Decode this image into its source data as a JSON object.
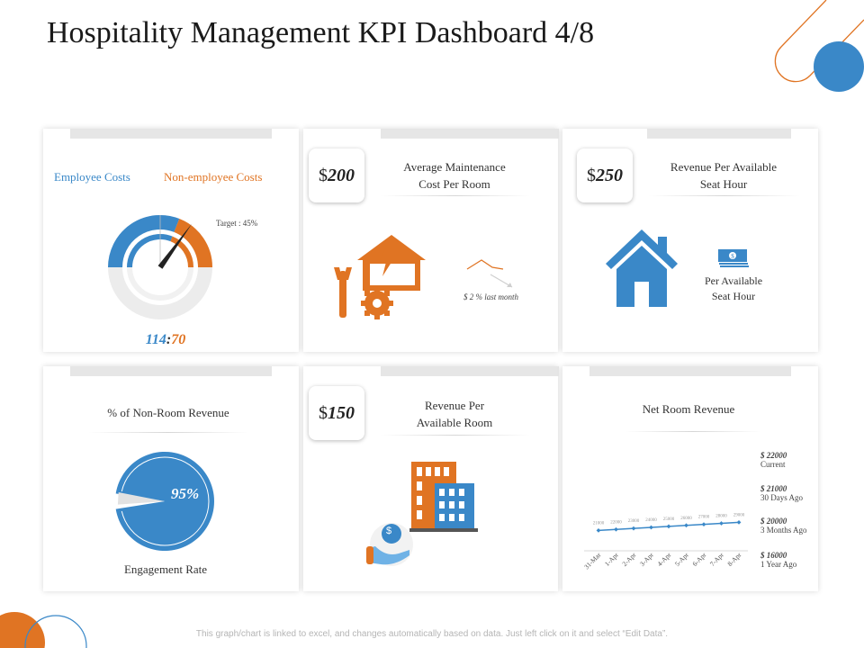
{
  "page": {
    "title": "Hospitality Management KPI Dashboard 4/8"
  },
  "colors": {
    "blue": "#3a88c8",
    "orange": "#e07423",
    "dark": "#222222",
    "grey": "#e8e8e8"
  },
  "employee_costs": {
    "legend_employee": "Employee Costs",
    "legend_non_employee": "Non-employee Costs",
    "target_label": "Target : 45%",
    "target_percent": 45,
    "employee_value": "114",
    "separator": ":",
    "non_employee_value": "70"
  },
  "maintenance": {
    "currency": "$",
    "value": "200",
    "title_line1": "Average Maintenance",
    "title_line2": "Cost Per Room",
    "trend_label": "$ 2 % last month"
  },
  "revpash": {
    "currency": "$",
    "value": "250",
    "title_line1": "Revenue Per Available",
    "title_line2": "Seat Hour",
    "sub_line1": "Per Available",
    "sub_line2": "Seat Hour"
  },
  "non_room": {
    "title": "% of Non-Room Revenue",
    "percent_label": "95%",
    "percent_value": 95,
    "caption": "Engagement Rate"
  },
  "revpar": {
    "currency": "$",
    "value": "150",
    "title_line1": "Revenue Per",
    "title_line2": "Available Room",
    "coin_symbol": "$"
  },
  "net_room": {
    "title": "Net Room Revenue",
    "stats": [
      {
        "value": "$ 22000",
        "label": "Current"
      },
      {
        "value": "$ 21000",
        "label": "30 Days Ago"
      },
      {
        "value": "$ 20000",
        "label": "3 Months Ago"
      },
      {
        "value": "$ 16000",
        "label": "1 Year Ago"
      }
    ]
  },
  "chart_data": {
    "type": "line",
    "title": "Net Room Revenue",
    "categories": [
      "31-Mar",
      "1-Apr",
      "2-Apr",
      "3-Apr",
      "4-Apr",
      "5-Apr",
      "6-Apr",
      "7-Apr",
      "8-Apr"
    ],
    "values": [
      21000,
      22000,
      23000,
      24000,
      25000,
      26000,
      27000,
      28000,
      29000
    ],
    "value_labels": [
      "21000",
      "22000",
      "23000",
      "24000",
      "25000",
      "26000",
      "27000",
      "28000",
      "29000"
    ],
    "ylim": [
      0,
      80000
    ],
    "xlabel": "",
    "ylabel": "",
    "grid": false
  },
  "footer": {
    "text": "This graph/chart is linked to excel, and changes automatically based on data. Just left click on it and select “Edit Data”."
  }
}
